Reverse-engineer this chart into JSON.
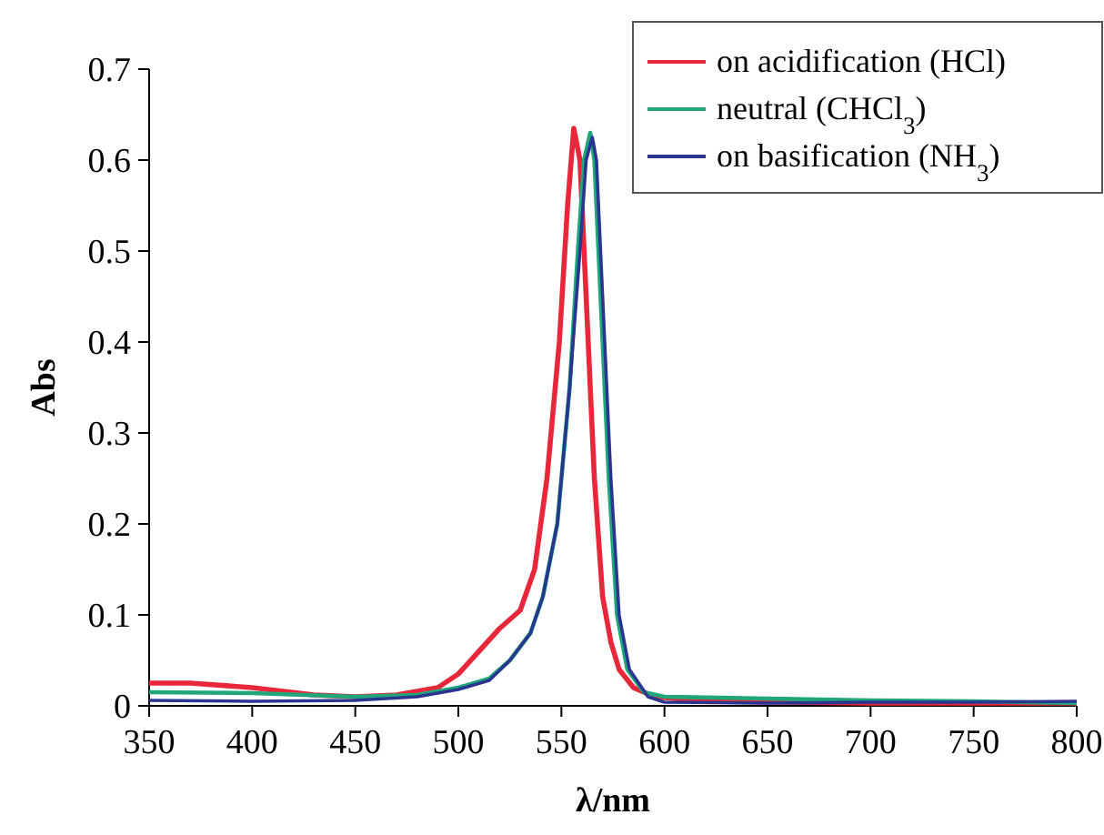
{
  "chart_data": {
    "type": "line",
    "xlabel": "λ/nm",
    "ylabel": "Abs",
    "xlim": [
      350,
      800
    ],
    "ylim": [
      0,
      0.7
    ],
    "xticks": [
      350,
      400,
      450,
      500,
      550,
      600,
      650,
      700,
      750,
      800
    ],
    "yticks": [
      0,
      0.1,
      0.2,
      0.3,
      0.4,
      0.5,
      0.6,
      0.7
    ],
    "grid": false,
    "legend": "top right",
    "marker": "none",
    "line_style": "solid",
    "series": [
      {
        "name": "on acidification (HCl)",
        "color": "#e8283a",
        "x": [
          350,
          370,
          400,
          430,
          450,
          470,
          490,
          500,
          510,
          520,
          530,
          537,
          543,
          549,
          553,
          556,
          559,
          562,
          566,
          570,
          574,
          578,
          585,
          595,
          620,
          700,
          800
        ],
        "values": [
          0.025,
          0.025,
          0.02,
          0.012,
          0.01,
          0.012,
          0.02,
          0.035,
          0.06,
          0.085,
          0.105,
          0.15,
          0.25,
          0.4,
          0.55,
          0.635,
          0.6,
          0.45,
          0.25,
          0.12,
          0.07,
          0.04,
          0.02,
          0.01,
          0.005,
          0.003,
          0.003
        ]
      },
      {
        "name": "neutral (CHCl$_{3}$)",
        "color": "#1fa67a",
        "x": [
          350,
          400,
          450,
          480,
          500,
          515,
          525,
          535,
          541,
          548,
          554,
          558,
          561,
          564,
          566,
          569,
          573,
          577,
          582,
          590,
          600,
          650,
          700,
          750,
          800
        ],
        "values": [
          0.015,
          0.014,
          0.01,
          0.012,
          0.02,
          0.03,
          0.05,
          0.08,
          0.12,
          0.2,
          0.35,
          0.5,
          0.6,
          0.63,
          0.6,
          0.45,
          0.25,
          0.1,
          0.04,
          0.015,
          0.01,
          0.008,
          0.006,
          0.005,
          0.003
        ]
      },
      {
        "name": "on basification (NH$_{3}$)",
        "color": "#2a3590",
        "x": [
          350,
          400,
          450,
          480,
          500,
          515,
          525,
          535,
          541,
          548,
          554,
          559,
          562,
          565,
          567,
          570,
          574,
          578,
          583,
          592,
          600,
          650,
          700,
          750,
          800
        ],
        "values": [
          0.006,
          0.005,
          0.006,
          0.01,
          0.018,
          0.028,
          0.05,
          0.08,
          0.12,
          0.2,
          0.35,
          0.5,
          0.6,
          0.625,
          0.6,
          0.45,
          0.25,
          0.1,
          0.04,
          0.01,
          0.004,
          0.003,
          0.004,
          0.004,
          0.005
        ]
      }
    ]
  }
}
